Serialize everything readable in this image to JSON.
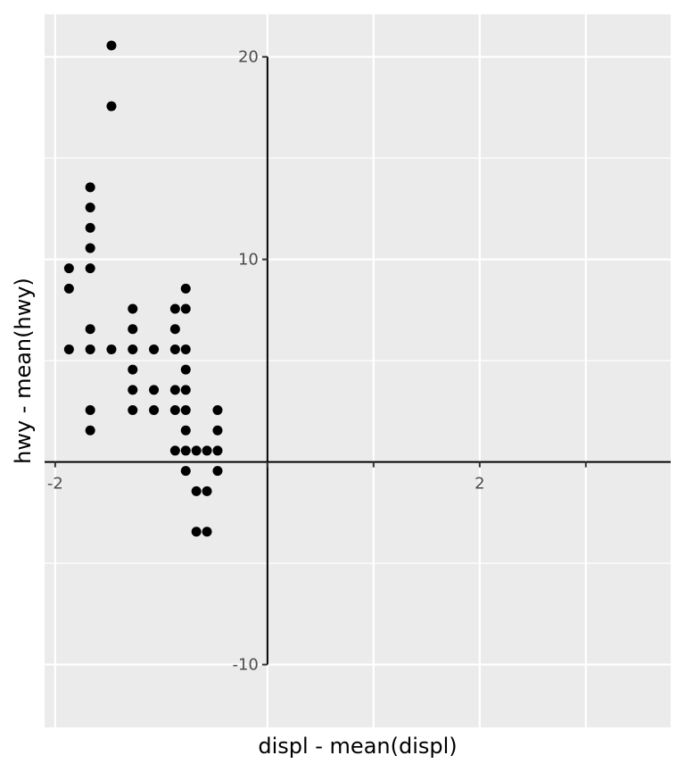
{
  "chart_data": {
    "type": "scatter",
    "xlabel": "displ - mean(displ)",
    "ylabel": "hwy - mean(hwy)",
    "xlim": [
      -2.1,
      3.8
    ],
    "ylim": [
      -13.1,
      22.1
    ],
    "x_ticks": [
      -2,
      2
    ],
    "x_tick_labels": [
      "-2",
      "2"
    ],
    "y_ticks": [
      -10,
      10,
      20
    ],
    "y_tick_labels": [
      "-10",
      "10",
      "20"
    ],
    "major_gridlines_x": [
      -2,
      0,
      1,
      2,
      3
    ],
    "major_gridlines_y": [
      -10,
      0,
      10,
      20
    ],
    "minor_gridlines_y": [
      -5,
      5,
      15
    ],
    "grid": true,
    "background": "#ebebeb",
    "point_color": "#000000",
    "points": [
      [
        -1.47,
        20.56
      ],
      [
        -1.47,
        17.56
      ],
      [
        -1.67,
        13.56
      ],
      [
        -1.67,
        12.56
      ],
      [
        -1.67,
        11.56
      ],
      [
        -1.67,
        10.56
      ],
      [
        -1.67,
        9.56
      ],
      [
        -1.67,
        6.56
      ],
      [
        -1.67,
        5.56
      ],
      [
        -1.67,
        2.56
      ],
      [
        -1.67,
        1.56
      ],
      [
        -1.87,
        9.56
      ],
      [
        -1.87,
        8.56
      ],
      [
        -1.87,
        5.56
      ],
      [
        -1.47,
        5.56
      ],
      [
        -1.27,
        7.56
      ],
      [
        -1.27,
        6.56
      ],
      [
        -1.27,
        5.56
      ],
      [
        -1.27,
        4.56
      ],
      [
        -1.27,
        3.56
      ],
      [
        -1.27,
        2.56
      ],
      [
        -1.27,
        5.56
      ],
      [
        -1.27,
        2.56
      ],
      [
        -1.27,
        3.56
      ],
      [
        -1.07,
        5.56
      ],
      [
        -1.07,
        3.56
      ],
      [
        -1.07,
        2.56
      ],
      [
        -0.87,
        7.56
      ],
      [
        -0.87,
        6.56
      ],
      [
        -0.87,
        5.56
      ],
      [
        -0.87,
        3.56
      ],
      [
        -0.87,
        2.56
      ],
      [
        -0.87,
        0.56
      ],
      [
        -0.77,
        8.56
      ],
      [
        -0.77,
        7.56
      ],
      [
        -0.77,
        5.56
      ],
      [
        -0.77,
        4.56
      ],
      [
        -0.77,
        3.56
      ],
      [
        -0.77,
        2.56
      ],
      [
        -0.77,
        1.56
      ],
      [
        -0.77,
        0.56
      ],
      [
        -0.77,
        -0.44
      ],
      [
        -0.77,
        2.56
      ],
      [
        -0.77,
        1.56
      ],
      [
        -0.77,
        3.56
      ],
      [
        -0.77,
        5.56
      ],
      [
        -0.57,
        0.56
      ],
      [
        -0.57,
        -1.44
      ],
      [
        -0.57,
        -3.44
      ],
      [
        -0.57,
        -3.44
      ],
      [
        -0.67,
        0.56
      ],
      [
        -0.67,
        -1.44
      ],
      [
        -0.67,
        -3.44
      ],
      [
        -0.47,
        2.56
      ],
      [
        -0.47,
        1.56
      ],
      [
        -0.47,
        0.56
      ],
      [
        -0.47,
        -0.44
      ],
      [
        -0.47,
        2.56
      ],
      [
        -0.47,
        1.56
      ],
      [
        -0.47,
        0.56
      ],
      [
        -0.47,
        -0.44
      ],
      [
        -0.47,
        2.56
      ],
      [
        -0.47,
        1.56
      ],
      [
        -0.47,
        -0.44
      ],
      [
        -0.47,
        -0.44
      ],
      [
        -0.47,
        1.56
      ],
      [
        -0.47,
        1.56
      ],
      [
        -0.47,
        2.56
      ],
      [
        -0.47,
        2.56
      ],
      [
        -0.47,
        0.56
      ],
      [
        -0.47,
        -0.44
      ],
      [
        -0.47,
        2.56
      ],
      [
        -0.47,
        1.56
      ],
      [
        -0.47,
        0.56
      ],
      [
        -0.47,
        0.56
      ],
      [
        -0.47,
        -0.44
      ],
      [
        -0.47,
        1.56
      ],
      [
        -0.47,
        1.56
      ],
      [
        -0.47,
        -0.44
      ],
      [
        -0.47,
        -0.44
      ],
      [
        -0.47,
        2.56
      ],
      [
        -0.47,
        0.56
      ],
      [
        -0.47,
        -0.44
      ],
      [
        -0.47,
        2.56
      ],
      [
        -0.47,
        1.56
      ],
      [
        -0.47,
        2.56
      ],
      [
        -0.47,
        0.56
      ],
      [
        -0.47,
        -0.44
      ],
      [
        -0.47,
        1.56
      ],
      [
        -0.47,
        2.56
      ],
      [
        -0.47,
        -0.44
      ],
      [
        -0.47,
        0.56
      ],
      [
        -0.47,
        1.56
      ],
      [
        -0.47,
        -0.44
      ],
      [
        -0.47,
        2.56
      ],
      [
        -0.47,
        0.56
      ],
      [
        -0.47,
        1.56
      ],
      [
        -0.47,
        2.56
      ],
      [
        -0.47,
        -0.44
      ],
      [
        -0.47,
        0.56
      ],
      [
        -0.47,
        1.56
      ],
      [
        -0.47,
        2.56
      ],
      [
        -0.47,
        -0.44
      ],
      [
        -0.47,
        0.56
      ],
      [
        -0.47,
        1.56
      ],
      [
        -0.47,
        2.56
      ],
      [
        -0.47,
        -0.44
      ],
      [
        -0.47,
        0.56
      ],
      [
        -0.47,
        1.56
      ],
      [
        -0.47,
        2.56
      ],
      [
        -0.47,
        0.56
      ],
      [
        -0.47,
        -0.44
      ],
      [
        -0.47,
        1.56
      ],
      [
        -0.47,
        2.56
      ],
      [
        -0.47,
        -0.44
      ],
      [
        -0.47,
        0.56
      ],
      [
        -0.47,
        1.56
      ],
      [
        -0.47,
        2.56
      ]
    ]
  }
}
